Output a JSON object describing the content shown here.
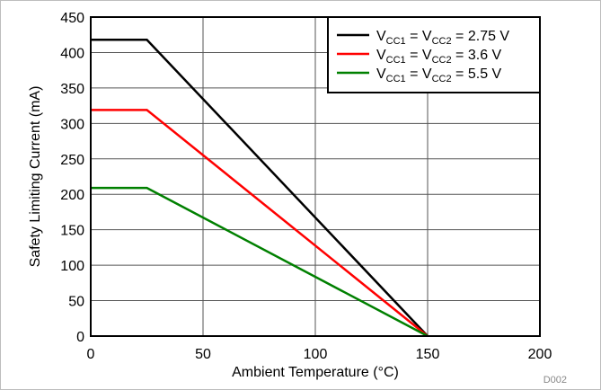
{
  "chart_data": {
    "type": "line",
    "title": "",
    "xlabel": "Ambient Temperature (°C)",
    "ylabel": "Safety Limiting Current (mA)",
    "xlim": [
      0,
      200
    ],
    "ylim": [
      0,
      450
    ],
    "xticks": [
      0,
      50,
      100,
      150,
      200
    ],
    "yticks": [
      0,
      50,
      100,
      150,
      200,
      250,
      300,
      350,
      400,
      450
    ],
    "grid": true,
    "legend_position": "top-right",
    "series": [
      {
        "label_parts": {
          "v1": "V",
          "s1": "CC1",
          "eq1": " = ",
          "v2": "V",
          "s2": "CC2",
          "val": " = 2.75 V"
        },
        "color": "#000000",
        "x": [
          0,
          25,
          150
        ],
        "y": [
          418,
          418,
          0
        ]
      },
      {
        "label_parts": {
          "v1": "V",
          "s1": "CC1",
          "eq1": " = ",
          "v2": "V",
          "s2": "CC2",
          "val": " = 3.6 V"
        },
        "color": "#ff0000",
        "x": [
          0,
          25,
          150
        ],
        "y": [
          319,
          319,
          0
        ]
      },
      {
        "label_parts": {
          "v1": "V",
          "s1": "CC1",
          "eq1": " = ",
          "v2": "V",
          "s2": "CC2",
          "val": " = 5.5 V"
        },
        "color": "#008000",
        "x": [
          0,
          25,
          150
        ],
        "y": [
          209,
          209,
          0
        ]
      }
    ],
    "figure_id": "D002"
  }
}
